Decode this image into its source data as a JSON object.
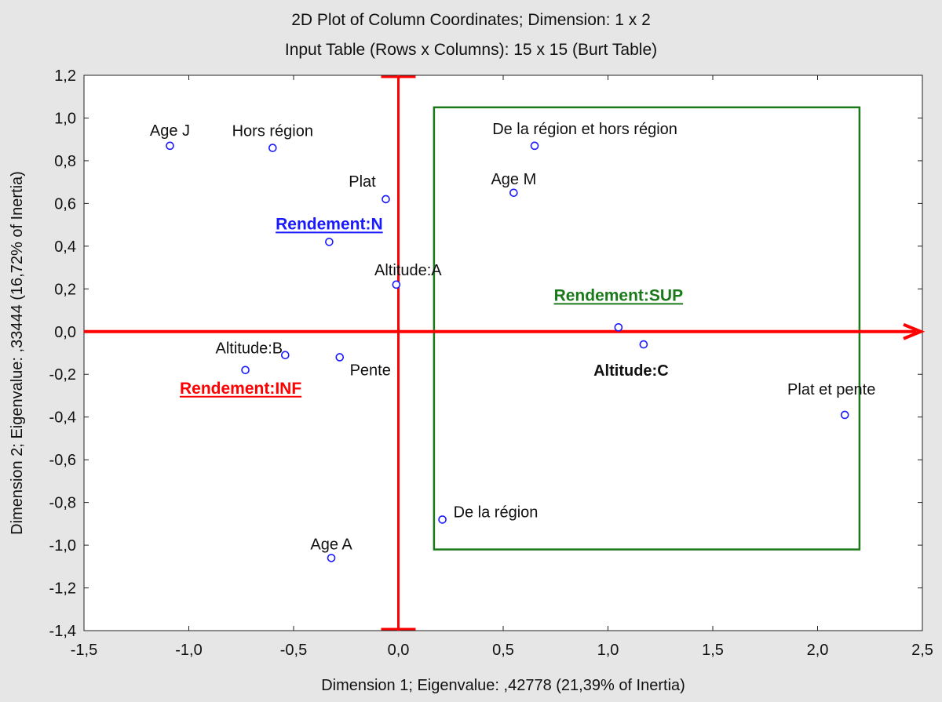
{
  "chart_data": {
    "type": "scatter",
    "title": "2D Plot of Column Coordinates; Dimension:  1 x  2",
    "subtitle": "Input Table (Rows x Columns): 15 x 15 (Burt Table)",
    "xlabel": "Dimension 1; Eigenvalue: ,42778 (21,39% of Inertia)",
    "ylabel": "Dimension 2; Eigenvalue: ,33444 (16,72% of Inertia)",
    "xlim": [
      -1.5,
      2.5
    ],
    "ylim": [
      -1.4,
      1.2
    ],
    "xticks": [
      "-1,5",
      "-1,0",
      "-0,5",
      "0,0",
      "0,5",
      "1,0",
      "1,5",
      "2,0",
      "2,5"
    ],
    "yticks": [
      "1,2",
      "1,0",
      "0,8",
      "0,6",
      "0,4",
      "0,2",
      "0,0",
      "-0,2",
      "-0,4",
      "-0,6",
      "-0,8",
      "-1,0",
      "-1,2",
      "-1,4"
    ],
    "grid": false,
    "points": [
      {
        "label": "Age J",
        "x": -1.09,
        "y": 0.87
      },
      {
        "label": "Hors région",
        "x": -0.6,
        "y": 0.86
      },
      {
        "label": "Plat",
        "x": -0.06,
        "y": 0.62
      },
      {
        "label": "Rendement:N",
        "x": -0.33,
        "y": 0.42
      },
      {
        "label": "Altitude:A",
        "x": -0.01,
        "y": 0.22
      },
      {
        "label": "Altitude:B",
        "x": -0.54,
        "y": -0.11
      },
      {
        "label": "Rendement:INF",
        "x": -0.73,
        "y": -0.18
      },
      {
        "label": "Pente",
        "x": -0.28,
        "y": -0.12
      },
      {
        "label": "Age A",
        "x": -0.32,
        "y": -1.06
      },
      {
        "label": "De la région et hors région",
        "x": 0.65,
        "y": 0.87
      },
      {
        "label": "Age M",
        "x": 0.55,
        "y": 0.65
      },
      {
        "label": "Rendement:SUP",
        "x": 1.05,
        "y": 0.02
      },
      {
        "label": "Altitude:C",
        "x": 1.17,
        "y": -0.06
      },
      {
        "label": "De la région",
        "x": 0.21,
        "y": -0.88
      },
      {
        "label": "Plat et pente",
        "x": 2.13,
        "y": -0.39
      }
    ],
    "highlight_box": {
      "x": [
        0.17,
        2.2
      ],
      "y": [
        -1.02,
        1.05
      ],
      "color": "#1a7a1a"
    },
    "axis_lines_color": "#ff0000",
    "point_color": "#1a1aff",
    "highlight_colors": {
      "Rendement:N": "#1a1aff",
      "Rendement:INF": "#ff0000",
      "Rendement:SUP": "#1a7a1a"
    }
  }
}
